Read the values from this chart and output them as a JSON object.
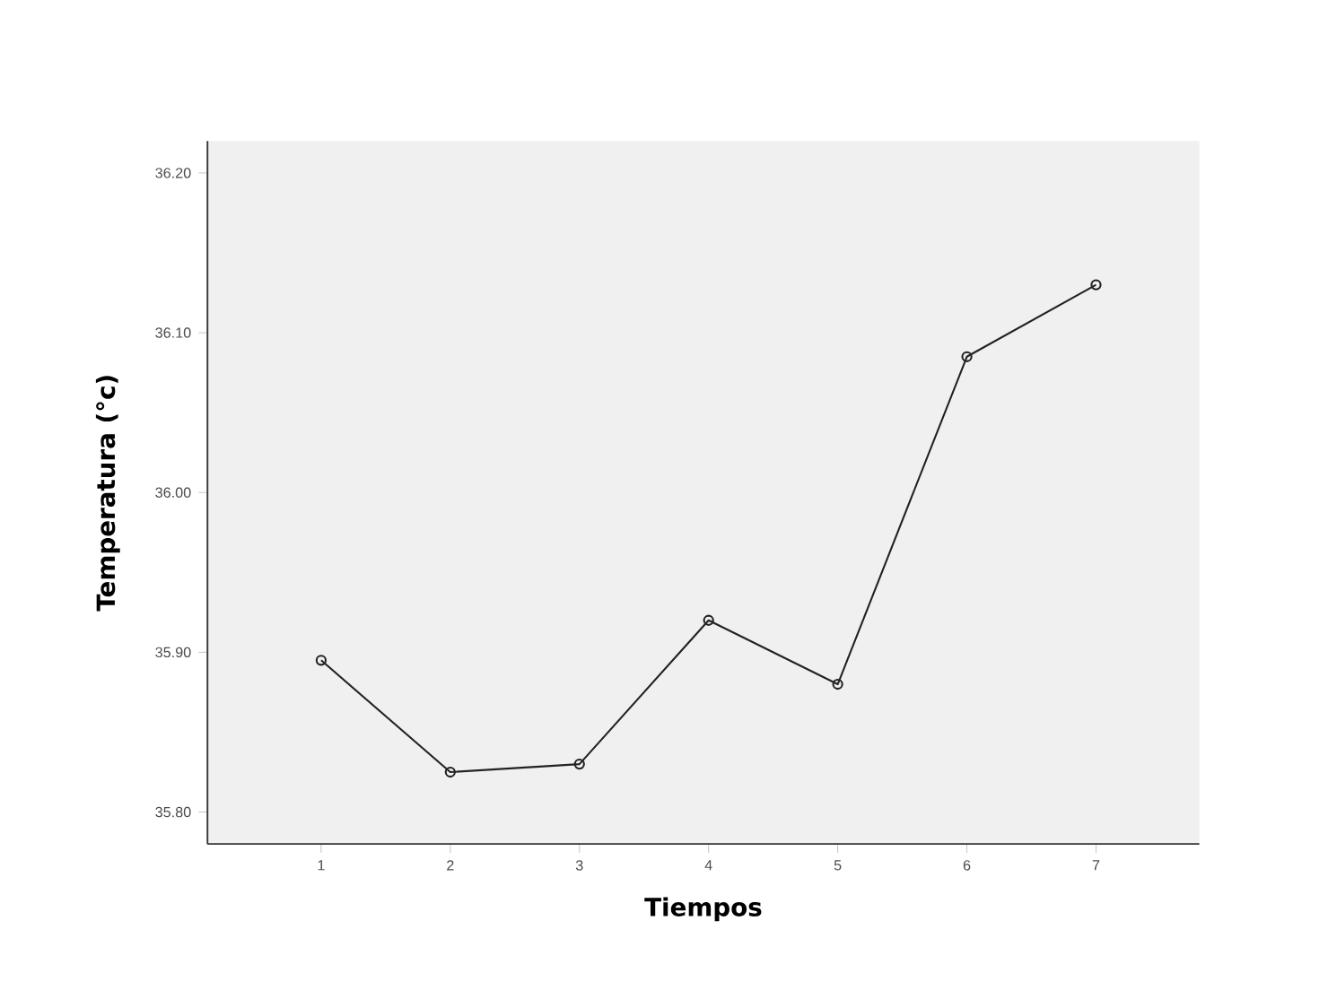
{
  "chart_data": {
    "type": "line",
    "xlabel": "Tiempos",
    "ylabel": "Temperatura (°c)",
    "x": [
      1,
      2,
      3,
      4,
      5,
      6,
      7
    ],
    "values": [
      35.895,
      35.825,
      35.83,
      35.92,
      35.88,
      36.085,
      36.13
    ],
    "color": "#222222",
    "marker": "circle",
    "line_style": "solid",
    "grid": false,
    "xlim": [
      0.12,
      7.8
    ],
    "xticks": [
      1,
      2,
      3,
      4,
      5,
      6,
      7
    ],
    "ylim": [
      35.78,
      36.22
    ],
    "yticks": [
      {
        "value": 35.8,
        "label": "35.80"
      },
      {
        "value": 35.9,
        "label": "35.90"
      },
      {
        "value": 36.0,
        "label": "36.00"
      },
      {
        "value": 36.1,
        "label": "36.10"
      },
      {
        "value": 36.2,
        "label": "36.20"
      }
    ]
  }
}
